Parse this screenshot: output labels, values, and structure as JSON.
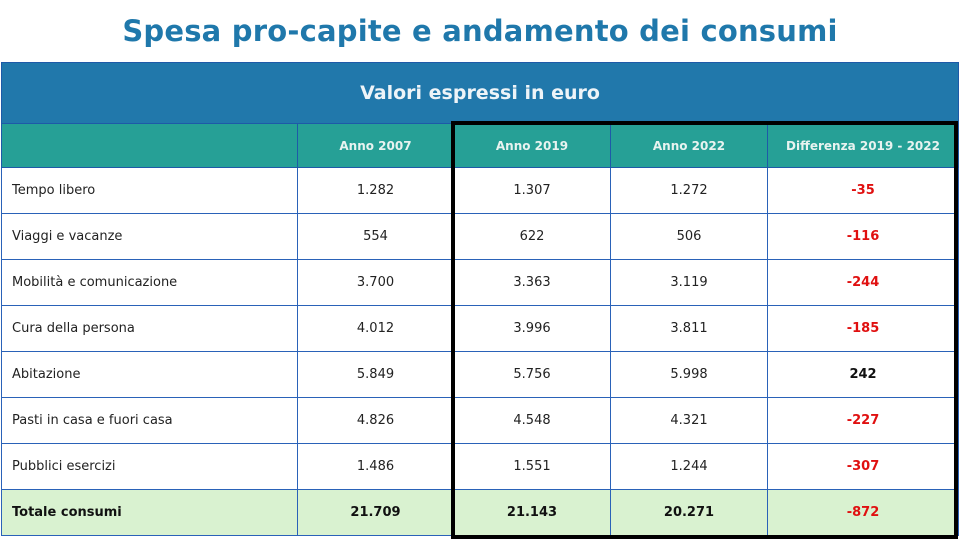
{
  "title": "Spesa pro-capite  e andamento dei consumi",
  "table": {
    "banner": "Valori espressi in euro",
    "headers": [
      "",
      "Anno 2007",
      "Anno 2019",
      "Anno 2022",
      "Differenza 2019 - 2022"
    ],
    "rows": [
      {
        "label": "Tempo libero",
        "y2007": "1.282",
        "y2019": "1.307",
        "y2022": "1.272",
        "diff": "-35"
      },
      {
        "label": "Viaggi e vacanze",
        "y2007": "554",
        "y2019": "622",
        "y2022": "506",
        "diff": "-116"
      },
      {
        "label": "Mobilità e comunicazione",
        "y2007": "3.700",
        "y2019": "3.363",
        "y2022": "3.119",
        "diff": "-244"
      },
      {
        "label": "Cura della persona",
        "y2007": "4.012",
        "y2019": "3.996",
        "y2022": "3.811",
        "diff": "-185"
      },
      {
        "label": "Abitazione",
        "y2007": "5.849",
        "y2019": "5.756",
        "y2022": "5.998",
        "diff": "242"
      },
      {
        "label": "Pasti in casa e fuori casa",
        "y2007": "4.826",
        "y2019": "4.548",
        "y2022": "4.321",
        "diff": "-227"
      },
      {
        "label": "Pubblici esercizi",
        "y2007": "1.486",
        "y2019": "1.551",
        "y2022": "1.244",
        "diff": "-307"
      }
    ],
    "total": {
      "label": "Totale consumi",
      "y2007": "21.709",
      "y2019": "21.143",
      "y2022": "20.271",
      "diff": "-872"
    }
  },
  "colors": {
    "title": "#1f78ab",
    "banner_bg": "#2178ab",
    "header_bg": "#26a096",
    "total_bg": "#d9f2d0",
    "negative": "#e01010",
    "highlight_border": "#000000"
  }
}
